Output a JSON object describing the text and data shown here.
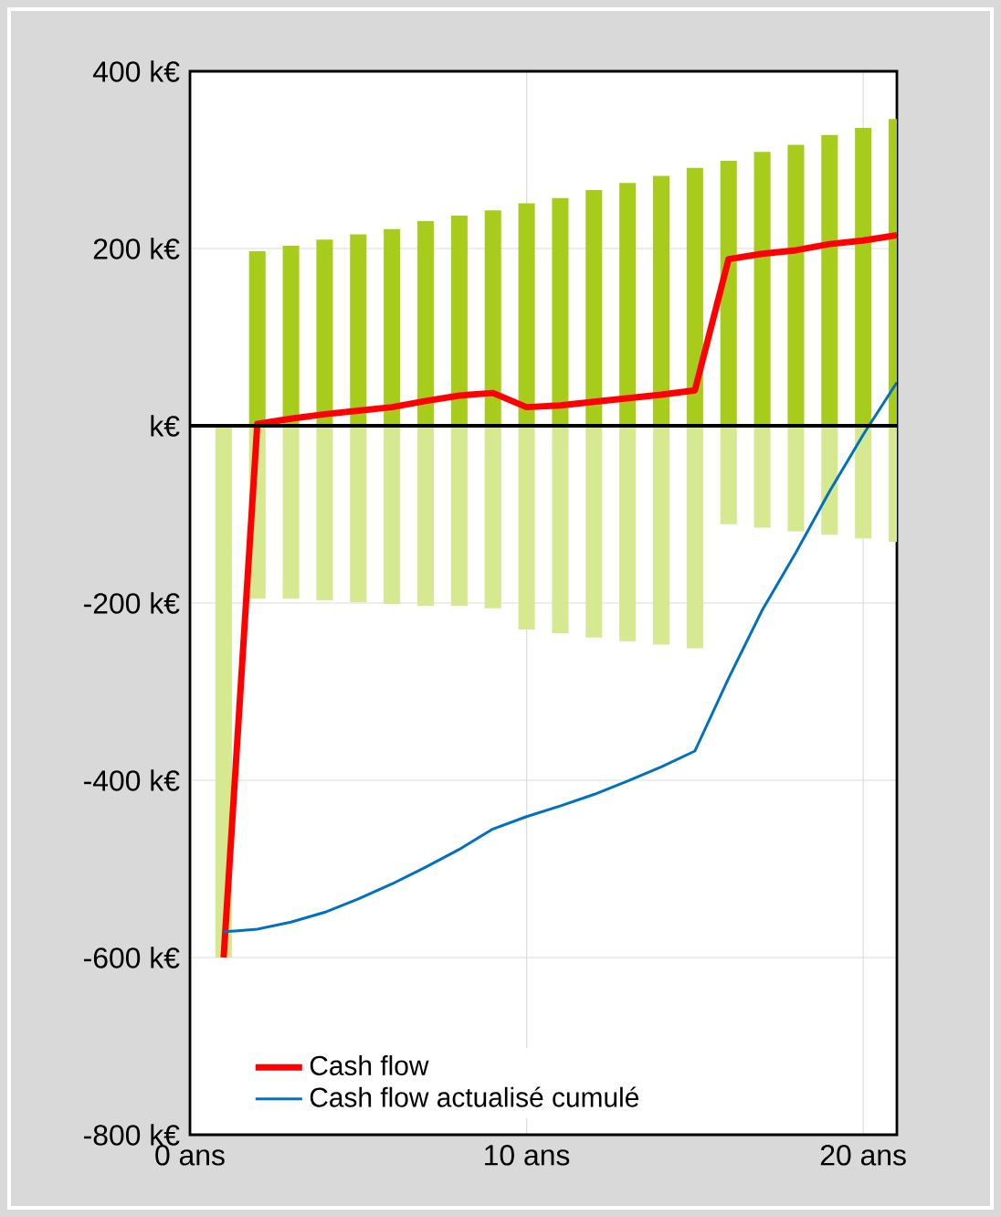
{
  "chart_data": {
    "type": "line",
    "x": [
      1,
      2,
      3,
      4,
      5,
      6,
      7,
      8,
      9,
      10,
      11,
      12,
      13,
      14,
      15,
      16,
      17,
      18,
      19,
      20,
      21
    ],
    "xlim": [
      0,
      21
    ],
    "xticks": [
      {
        "value": 0,
        "label": "0 ans"
      },
      {
        "value": 10,
        "label": "10 ans"
      },
      {
        "value": 20,
        "label": "20 ans"
      }
    ],
    "ylim": [
      -800,
      400
    ],
    "yticks": [
      {
        "value": -800,
        "label": "-800 k€"
      },
      {
        "value": -600,
        "label": "-600 k€"
      },
      {
        "value": -400,
        "label": "-400 k€"
      },
      {
        "value": -200,
        "label": "-200 k€"
      },
      {
        "value": 0,
        "label": "k€"
      },
      {
        "value": 200,
        "label": "200 k€"
      },
      {
        "value": 400,
        "label": "400 k€"
      }
    ],
    "grid": true,
    "stacked": true,
    "legend": "bottom left",
    "ref_lines": [
      {
        "axis": "y",
        "value": 0,
        "color": "#000000"
      }
    ],
    "series": [
      {
        "type": "bar",
        "color": "#a8cc1c",
        "values": [
          null,
          197,
          203,
          210,
          216,
          222,
          231,
          237,
          243,
          251,
          257,
          266,
          274,
          282,
          291,
          299,
          309,
          317,
          328,
          336,
          346
        ]
      },
      {
        "type": "bar",
        "color": "#d6e890",
        "values": [
          -600,
          -195,
          -195,
          -197,
          -199,
          -201,
          -203,
          -203,
          -206,
          -230,
          -234,
          -239,
          -243,
          -247,
          -251,
          -111,
          -115,
          -119,
          -123,
          -127,
          -131
        ]
      },
      {
        "name": "Cash flow",
        "color": "#ff0000",
        "values": [
          -600,
          2,
          8,
          13,
          17,
          21,
          28,
          34,
          37,
          21,
          23,
          27,
          31,
          35,
          40,
          188,
          194,
          198,
          205,
          209,
          215
        ]
      },
      {
        "name": "Cash flow actualisé cumulé",
        "color": "#0070c0",
        "values": [
          -571,
          -568,
          -560,
          -549,
          -534,
          -517,
          -498,
          -478,
          -455,
          -441,
          -429,
          -416,
          -401,
          -385,
          -367,
          -285,
          -208,
          -143,
          -74,
          -10,
          49
        ]
      }
    ]
  }
}
